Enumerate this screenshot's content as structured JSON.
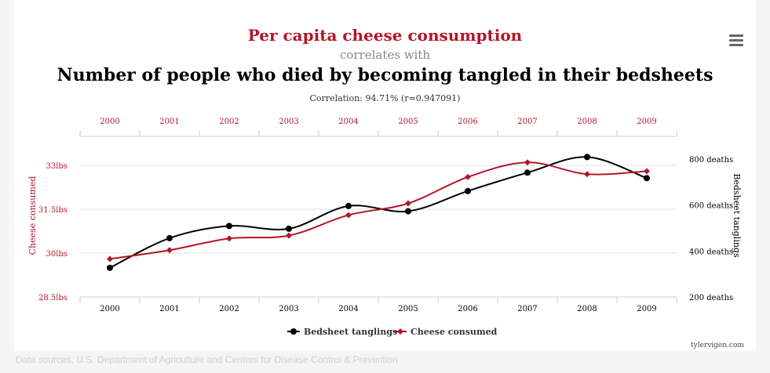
{
  "header": {
    "title": "Per capita cheese consumption",
    "correlates_with": "correlates with",
    "subtitle": "Number of people who died by becoming tangled in their bedsheets",
    "correlation": "Correlation: 94.71% (r=0.947091)"
  },
  "menu": {
    "icon": "hamburger-menu-icon"
  },
  "credit": "tylervigen.com",
  "footer": "Data sources: U.S. Department of Agriculture and Centers for Disease Control & Prevention",
  "colors": {
    "cheese": "#b2162a",
    "bedsheet": "#000000",
    "grid": "#e3e3e3",
    "axis": "#c0d0e0"
  },
  "chart_data": {
    "type": "line",
    "categories": [
      "2000",
      "2001",
      "2002",
      "2003",
      "2004",
      "2005",
      "2006",
      "2007",
      "2008",
      "2009"
    ],
    "series": [
      {
        "name": "Bedsheet tanglings",
        "axis": "right",
        "color": "#000000",
        "marker": "circle",
        "values": [
          327,
          456,
          509,
          497,
          596,
          573,
          661,
          741,
          809,
          717
        ]
      },
      {
        "name": "Cheese consumed",
        "axis": "left",
        "color": "#b2162a",
        "marker": "diamond",
        "values": [
          29.8,
          30.1,
          30.5,
          30.6,
          31.3,
          31.7,
          32.6,
          33.1,
          32.7,
          32.8
        ]
      }
    ],
    "left_axis": {
      "label": "Cheese consumed",
      "ticks": [
        "28.5lbs",
        "30lbs",
        "31.5lbs",
        "33lbs"
      ],
      "range": [
        28.5,
        33
      ]
    },
    "right_axis": {
      "label": "Bedsheet tanglings",
      "ticks": [
        "200 deaths",
        "400 deaths",
        "600 deaths",
        "800 deaths"
      ],
      "range": [
        200,
        800
      ]
    },
    "legend": {
      "placement": "bottom-center",
      "entries": [
        "Bedsheet tanglings",
        "Cheese consumed"
      ]
    }
  }
}
